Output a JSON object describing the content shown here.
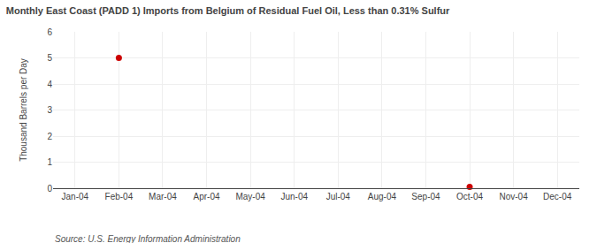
{
  "chart_data": {
    "type": "scatter",
    "title": "Monthly East Coast (PADD 1) Imports from Belgium of Residual Fuel Oil, Less than 0.31% Sulfur",
    "ylabel": "Thousand Barrels per Day",
    "annotations": [
      "Source: U.S. Energy Information Administration"
    ],
    "categories": [
      "Jan-04",
      "Feb-04",
      "Mar-04",
      "Apr-04",
      "May-04",
      "Jun-04",
      "Jul-04",
      "Aug-04",
      "Sep-04",
      "Oct-04",
      "Nov-04",
      "Dec-04"
    ],
    "values": [
      null,
      5.0,
      null,
      null,
      null,
      null,
      null,
      null,
      null,
      0.05,
      null,
      null
    ],
    "color": "#cc0000",
    "marker": "circle",
    "ylim": [
      0,
      6
    ],
    "yticks": [
      0,
      1,
      2,
      3,
      4,
      5,
      6
    ],
    "grid": true
  }
}
